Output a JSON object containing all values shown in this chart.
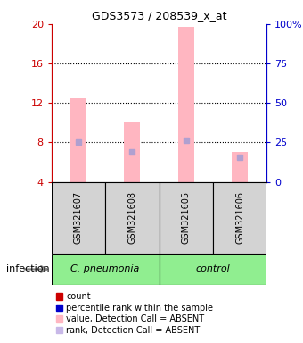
{
  "title": "GDS3573 / 208539_x_at",
  "samples": [
    "GSM321607",
    "GSM321608",
    "GSM321605",
    "GSM321606"
  ],
  "ylim_left": [
    4,
    20
  ],
  "ylim_right": [
    0,
    100
  ],
  "yticks_left": [
    4,
    8,
    12,
    16,
    20
  ],
  "yticks_right": [
    0,
    25,
    50,
    75,
    100
  ],
  "bar_values": [
    12.5,
    10.0,
    19.7,
    7.0
  ],
  "rank_values": [
    8.0,
    7.0,
    8.2,
    6.5
  ],
  "bar_color": "#ffb6c1",
  "rank_color": "#b0a0d0",
  "bar_bottom": 4,
  "background_color": "#ffffff",
  "left_axis_color": "#cc0000",
  "right_axis_color": "#0000cc",
  "legend_items": [
    {
      "label": "count",
      "color": "#cc0000"
    },
    {
      "label": "percentile rank within the sample",
      "color": "#0000cc"
    },
    {
      "label": "value, Detection Call = ABSENT",
      "color": "#ffb6c1"
    },
    {
      "label": "rank, Detection Call = ABSENT",
      "color": "#c8b8e8"
    }
  ],
  "infection_label": "infection",
  "sample_box_color": "#d3d3d3",
  "group_data": [
    {
      "label": "C. pneumonia",
      "start": 0,
      "end": 1,
      "color": "#90ee90"
    },
    {
      "label": "control",
      "start": 2,
      "end": 3,
      "color": "#90ee90"
    }
  ]
}
